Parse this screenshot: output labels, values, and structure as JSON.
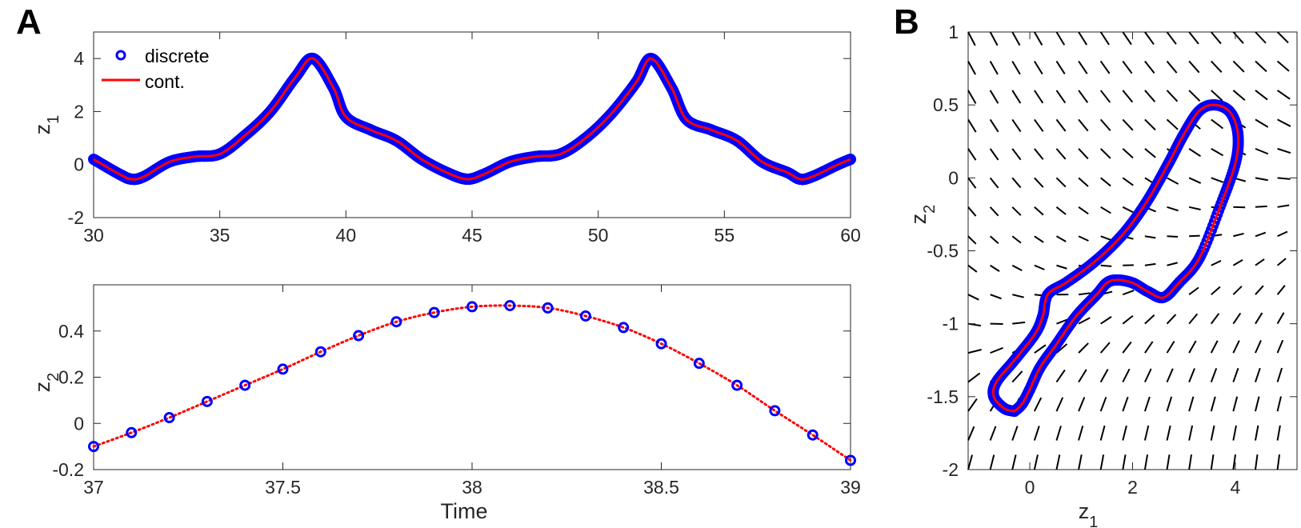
{
  "figure": {
    "panel_labels": [
      "A",
      "B"
    ]
  },
  "chart_data": [
    {
      "type": "line",
      "panel": "A",
      "ylabel": "z",
      "ylabel_sub": "1",
      "xlabel": "",
      "xlim": [
        30,
        60
      ],
      "ylim": [
        -2,
        5
      ],
      "xticks": [
        30,
        35,
        40,
        45,
        50,
        55,
        60
      ],
      "yticks": [
        -2,
        0,
        2,
        4
      ],
      "legend": {
        "location": "top-left",
        "entries": [
          "discrete",
          "cont."
        ]
      },
      "colors": {
        "discrete": "#0000ff",
        "cont": "#ff0000"
      },
      "series": [
        {
          "name": "discrete",
          "marker": "circle",
          "x": [
            30,
            31,
            31.5,
            32,
            33,
            34,
            35,
            36,
            37,
            38,
            38.7,
            39.5,
            40,
            41,
            42,
            43,
            44,
            44.8,
            45.5,
            46.5,
            47.5,
            48.5,
            49.5,
            50.5,
            51.5,
            52.1,
            52.9,
            53.5,
            54.5,
            55.5,
            56.5,
            57.5,
            58,
            58.5,
            59.5,
            60
          ],
          "y": [
            0.2,
            -0.35,
            -0.55,
            -0.45,
            0.1,
            0.3,
            0.4,
            1.1,
            2.0,
            3.3,
            4.0,
            2.9,
            1.8,
            1.3,
            0.9,
            0.2,
            -0.3,
            -0.55,
            -0.35,
            0.1,
            0.3,
            0.4,
            1.0,
            1.9,
            3.1,
            4.0,
            2.9,
            1.7,
            1.3,
            0.9,
            0.1,
            -0.3,
            -0.55,
            -0.45,
            0.0,
            0.2
          ]
        },
        {
          "name": "cont.",
          "marker": "line",
          "x": [
            30,
            31,
            31.5,
            32,
            33,
            34,
            35,
            36,
            37,
            38,
            38.7,
            39.5,
            40,
            41,
            42,
            43,
            44,
            44.8,
            45.5,
            46.5,
            47.5,
            48.5,
            49.5,
            50.5,
            51.5,
            52.1,
            52.9,
            53.5,
            54.5,
            55.5,
            56.5,
            57.5,
            58,
            58.5,
            59.5,
            60
          ],
          "y": [
            0.2,
            -0.35,
            -0.55,
            -0.45,
            0.1,
            0.3,
            0.4,
            1.1,
            2.0,
            3.3,
            4.0,
            2.9,
            1.8,
            1.3,
            0.9,
            0.2,
            -0.3,
            -0.55,
            -0.35,
            0.1,
            0.3,
            0.4,
            1.0,
            1.9,
            3.1,
            4.0,
            2.9,
            1.7,
            1.3,
            0.9,
            0.1,
            -0.3,
            -0.55,
            -0.45,
            0.0,
            0.2
          ]
        }
      ]
    },
    {
      "type": "line",
      "panel": "A",
      "ylabel": "z",
      "ylabel_sub": "2",
      "xlabel": "Time",
      "xlim": [
        37,
        39
      ],
      "ylim": [
        -0.2,
        0.6
      ],
      "xticks": [
        37,
        37.5,
        38,
        38.5,
        39
      ],
      "yticks": [
        -0.2,
        0,
        0.2,
        0.4
      ],
      "series": [
        {
          "name": "discrete",
          "marker": "circle",
          "x": [
            37.0,
            37.1,
            37.2,
            37.3,
            37.4,
            37.5,
            37.6,
            37.7,
            37.8,
            37.9,
            38.0,
            38.1,
            38.2,
            38.3,
            38.4,
            38.5,
            38.6,
            38.7,
            38.8,
            38.9,
            39.0
          ],
          "y": [
            -0.1,
            -0.04,
            0.025,
            0.095,
            0.165,
            0.235,
            0.31,
            0.38,
            0.44,
            0.48,
            0.505,
            0.51,
            0.5,
            0.465,
            0.415,
            0.345,
            0.26,
            0.165,
            0.055,
            -0.05,
            -0.16
          ]
        },
        {
          "name": "cont.",
          "marker": "dotted-line",
          "x": [
            37.0,
            37.1,
            37.2,
            37.3,
            37.4,
            37.5,
            37.6,
            37.7,
            37.8,
            37.9,
            38.0,
            38.1,
            38.2,
            38.3,
            38.4,
            38.5,
            38.6,
            38.7,
            38.8,
            38.9,
            39.0
          ],
          "y": [
            -0.1,
            -0.04,
            0.025,
            0.095,
            0.165,
            0.235,
            0.31,
            0.38,
            0.44,
            0.48,
            0.505,
            0.51,
            0.5,
            0.465,
            0.415,
            0.345,
            0.26,
            0.165,
            0.055,
            -0.05,
            -0.16
          ]
        }
      ]
    },
    {
      "type": "scatter",
      "panel": "B",
      "xlabel": "z",
      "xlabel_sub": "1",
      "ylabel": "z",
      "ylabel_sub": "2",
      "xlim": [
        -1.2,
        5.2
      ],
      "ylim": [
        -2,
        1
      ],
      "xticks": [
        0,
        2,
        4
      ],
      "yticks": [
        -2,
        -1.5,
        -1,
        -0.5,
        0,
        0.5,
        1
      ],
      "has_vector_field": true,
      "trajectory": {
        "z1": [
          -0.3,
          -0.15,
          0.0,
          0.2,
          0.5,
          0.9,
          1.3,
          1.5,
          1.7,
          2.0,
          2.3,
          2.6,
          2.9,
          3.3,
          3.7,
          4.0,
          4.05,
          3.9,
          3.6,
          3.3,
          3.0,
          2.7,
          2.3,
          1.9,
          1.5,
          1.1,
          0.7,
          0.35,
          0.25,
          0.1,
          -0.3,
          -0.65,
          -0.7,
          -0.5,
          -0.3
        ],
        "z2": [
          -1.6,
          -1.55,
          -1.45,
          -1.3,
          -1.15,
          -0.95,
          -0.8,
          -0.72,
          -0.7,
          -0.72,
          -0.78,
          -0.82,
          -0.72,
          -0.55,
          -0.2,
          0.1,
          0.3,
          0.45,
          0.5,
          0.46,
          0.3,
          0.1,
          -0.15,
          -0.35,
          -0.5,
          -0.62,
          -0.72,
          -0.8,
          -0.95,
          -1.07,
          -1.25,
          -1.4,
          -1.5,
          -1.58,
          -1.6
        ]
      },
      "colors": {
        "discrete": "#0000ff",
        "cont": "#ff0000",
        "quiver": "#000000"
      }
    }
  ]
}
